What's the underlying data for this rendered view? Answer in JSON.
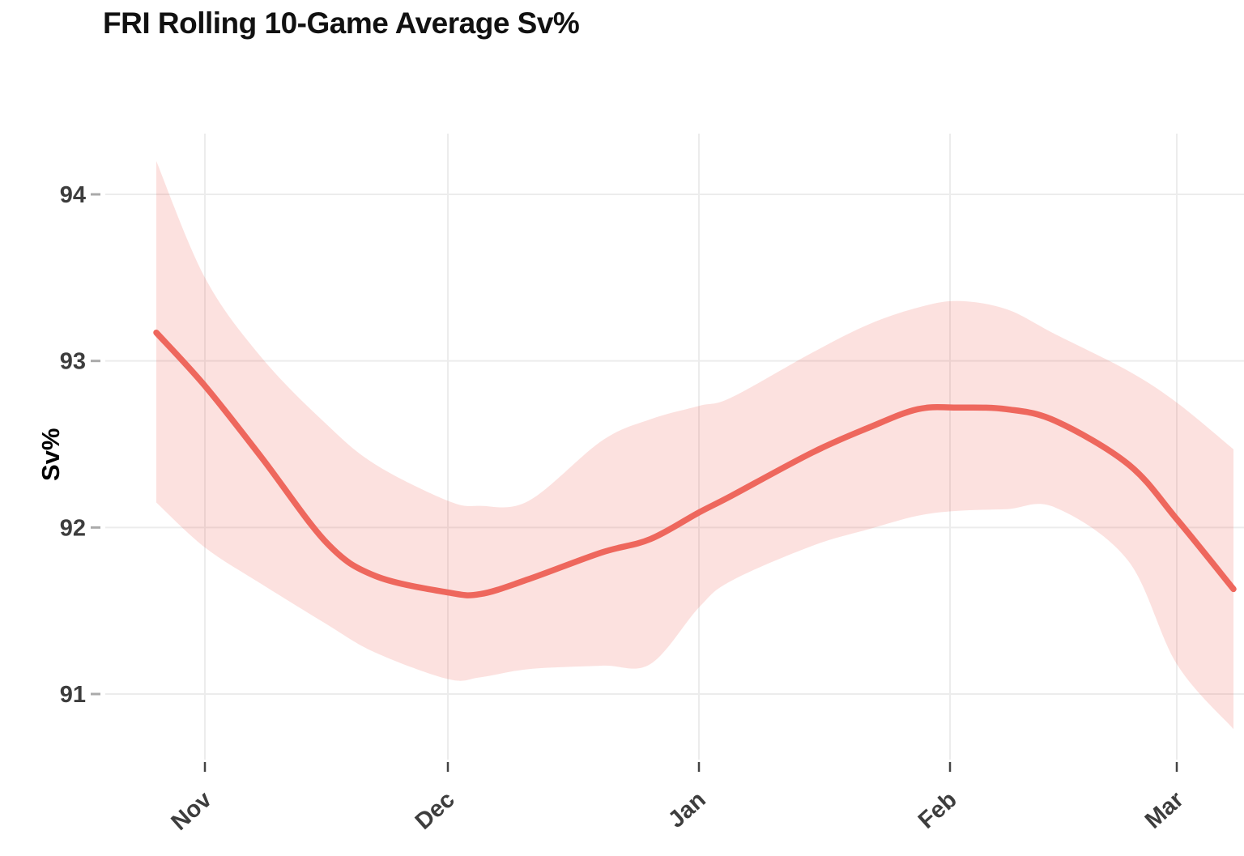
{
  "page": {
    "title": "FRI Rolling 10-Game Average Sv%"
  },
  "chart_data": {
    "type": "line",
    "title": "FRI Rolling 10-Game Average Sv%",
    "xlabel": "",
    "ylabel": "Sv%",
    "legend": "none",
    "grid": true,
    "ylim": [
      90.6,
      94.36
    ],
    "y_ticks": [
      94,
      93,
      92,
      91
    ],
    "x_unit": "days since Nov 1",
    "x_ticks": [
      {
        "label": "Nov",
        "day": 0
      },
      {
        "label": "Dec",
        "day": 30
      },
      {
        "label": "Jan",
        "day": 61
      },
      {
        "label": "Feb",
        "day": 92
      },
      {
        "label": "Mar",
        "day": 120
      }
    ],
    "series": [
      {
        "name": "FRI rolling 10-game average Sv%",
        "points": [
          [
            -6,
            93.17
          ],
          [
            0,
            92.85
          ],
          [
            7,
            92.42
          ],
          [
            15,
            91.91
          ],
          [
            21,
            91.71
          ],
          [
            30,
            91.61
          ],
          [
            34,
            91.6
          ],
          [
            40,
            91.69
          ],
          [
            49,
            91.85
          ],
          [
            55,
            91.93
          ],
          [
            61,
            92.09
          ],
          [
            65,
            92.19
          ],
          [
            75,
            92.45
          ],
          [
            82,
            92.6
          ],
          [
            88,
            92.71
          ],
          [
            93,
            92.72
          ],
          [
            99,
            92.71
          ],
          [
            105,
            92.64
          ],
          [
            114,
            92.38
          ],
          [
            120,
            92.05
          ],
          [
            127,
            91.63
          ]
        ]
      }
    ],
    "band": {
      "name": "confidence band",
      "upper": [
        [
          -6,
          94.2
        ],
        [
          0,
          93.5
        ],
        [
          7,
          93.02
        ],
        [
          15,
          92.62
        ],
        [
          21,
          92.38
        ],
        [
          30,
          92.16
        ],
        [
          34,
          92.13
        ],
        [
          40,
          92.16
        ],
        [
          49,
          92.52
        ],
        [
          55,
          92.65
        ],
        [
          61,
          92.73
        ],
        [
          65,
          92.78
        ],
        [
          75,
          93.05
        ],
        [
          82,
          93.22
        ],
        [
          88,
          93.32
        ],
        [
          93,
          93.36
        ],
        [
          99,
          93.31
        ],
        [
          105,
          93.16
        ],
        [
          114,
          92.94
        ],
        [
          120,
          92.75
        ],
        [
          127,
          92.47
        ]
      ],
      "lower": [
        [
          -6,
          92.15
        ],
        [
          0,
          91.88
        ],
        [
          7,
          91.66
        ],
        [
          15,
          91.42
        ],
        [
          21,
          91.25
        ],
        [
          30,
          91.09
        ],
        [
          34,
          91.1
        ],
        [
          40,
          91.15
        ],
        [
          49,
          91.17
        ],
        [
          55,
          91.18
        ],
        [
          61,
          91.52
        ],
        [
          65,
          91.68
        ],
        [
          75,
          91.89
        ],
        [
          82,
          91.99
        ],
        [
          88,
          92.07
        ],
        [
          93,
          92.1
        ],
        [
          99,
          92.11
        ],
        [
          105,
          92.12
        ],
        [
          114,
          91.8
        ],
        [
          120,
          91.18
        ],
        [
          127,
          90.79
        ]
      ]
    },
    "colors": {
      "line": "#ee675d",
      "band_fill": "rgba(238,103,93,0.20)",
      "grid": "#ececec",
      "tick_label": "#3d3d3d",
      "y_tick_mark": "#aaaaaa",
      "x_tick_mark": "#444444",
      "title": "#111111",
      "background": "#ffffff"
    }
  }
}
